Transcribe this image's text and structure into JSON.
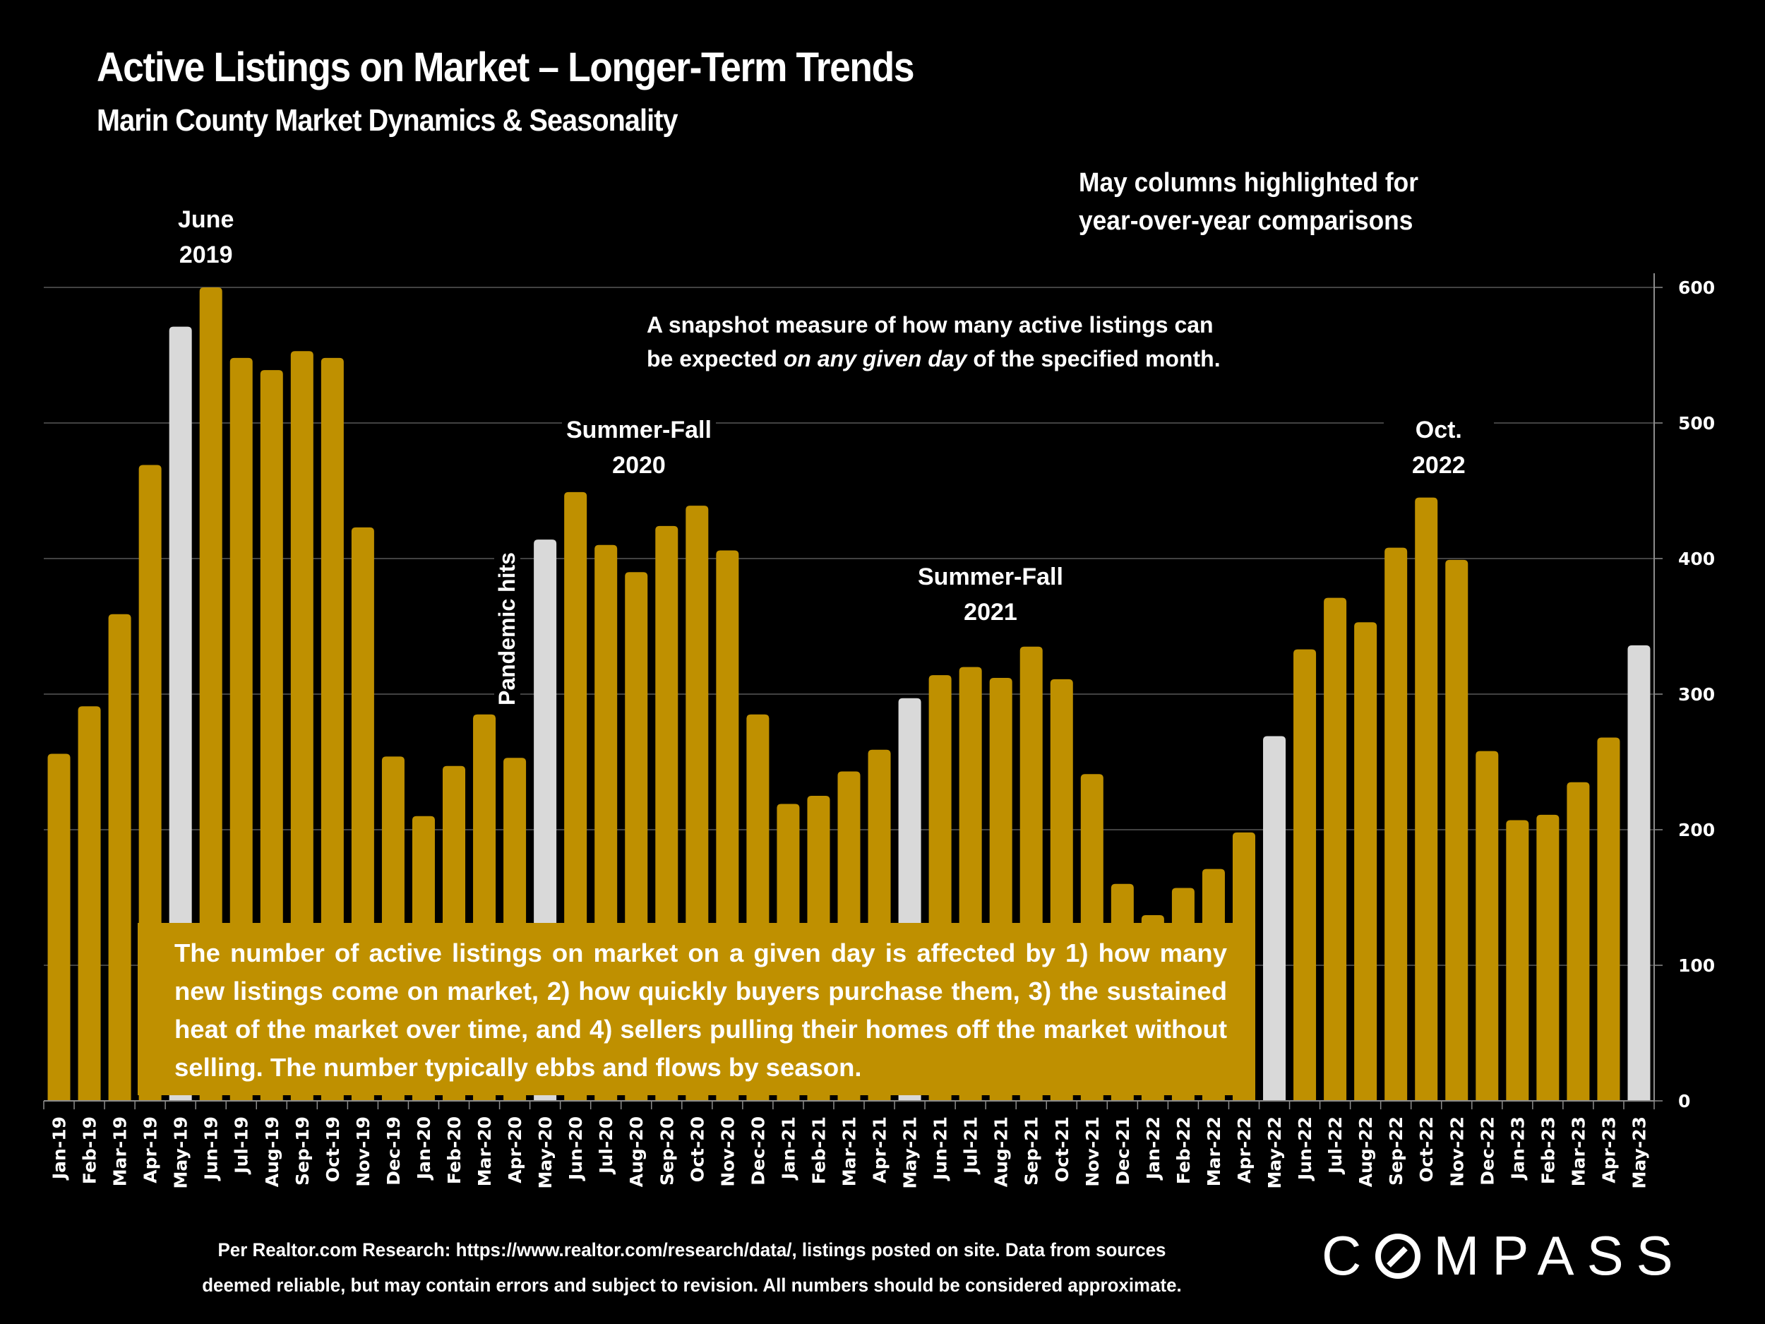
{
  "header": {
    "title": "Active Listings on Market – Longer-Term Trends",
    "subtitle": "Marin County Market Dynamics & Seasonality"
  },
  "notes": {
    "may_highlight_line1": "May columns highlighted for",
    "may_highlight_line2": "year-over-year comparisons",
    "snapshot_line1": "A snapshot measure of how many active listings can",
    "snapshot_line2_pre": "be expected ",
    "snapshot_line2_em": "on any given day",
    "snapshot_line2_post": " of the specified month."
  },
  "annotations": {
    "june2019_line1": "June",
    "june2019_line2": "2019",
    "summerfall2020_line1": "Summer-Fall",
    "summerfall2020_line2": "2020",
    "summerfall2021_line1": "Summer-Fall",
    "summerfall2021_line2": "2021",
    "oct2022_line1": "Oct.",
    "oct2022_line2": "2022",
    "pandemic": "Pandemic hits"
  },
  "textbox": "The number of active listings on market on a given day is affected by 1) how many new listings come on market, 2) how quickly buyers purchase them, 3) the sustained heat of the market over time, and 4) sellers pulling their homes off the market without selling. The number typically ebbs and flows by season.",
  "footer": {
    "line1": "Per Realtor.com Research:  https://www.realtor.com/research/data/, listings posted on site. Data from sources",
    "line2": "deemed reliable, but may contain errors and subject to revision. All numbers should be considered approximate."
  },
  "logo": {
    "pre": "C",
    "post": "MPASS"
  },
  "colors": {
    "bar": "#BF9000",
    "highlight": "#D9D9D9",
    "background": "#000000",
    "gridline": "#595959"
  },
  "chart_data": {
    "type": "bar",
    "title": "Active Listings on Market – Longer-Term Trends",
    "subtitle": "Marin County Market Dynamics & Seasonality",
    "xlabel": "",
    "ylabel": "",
    "ylim": [
      0,
      600
    ],
    "yticks": [
      0,
      100,
      200,
      300,
      400,
      500,
      600
    ],
    "y_axis_side": "right",
    "grid": true,
    "highlight_rule": "May columns highlighted",
    "categories": [
      "Jan-19",
      "Feb-19",
      "Mar-19",
      "Apr-19",
      "May-19",
      "Jun-19",
      "Jul-19",
      "Aug-19",
      "Sep-19",
      "Oct-19",
      "Nov-19",
      "Dec-19",
      "Jan-20",
      "Feb-20",
      "Mar-20",
      "Apr-20",
      "May-20",
      "Jun-20",
      "Jul-20",
      "Aug-20",
      "Sep-20",
      "Oct-20",
      "Nov-20",
      "Dec-20",
      "Jan-21",
      "Feb-21",
      "Mar-21",
      "Apr-21",
      "May-21",
      "Jun-21",
      "Jul-21",
      "Aug-21",
      "Sep-21",
      "Oct-21",
      "Nov-21",
      "Dec-21",
      "Jan-22",
      "Feb-22",
      "Mar-22",
      "Apr-22",
      "May-22",
      "Jun-22",
      "Jul-22",
      "Aug-22",
      "Sep-22",
      "Oct-22",
      "Nov-22",
      "Dec-22",
      "Jan-23",
      "Feb-23",
      "Mar-23",
      "Apr-23",
      "May-23"
    ],
    "values": [
      256,
      291,
      359,
      469,
      571,
      600,
      548,
      539,
      553,
      548,
      423,
      254,
      210,
      247,
      285,
      253,
      414,
      449,
      410,
      390,
      424,
      439,
      406,
      285,
      219,
      225,
      243,
      259,
      297,
      314,
      320,
      312,
      335,
      311,
      241,
      160,
      137,
      157,
      171,
      198,
      269,
      333,
      371,
      353,
      408,
      445,
      399,
      258,
      207,
      211,
      235,
      268,
      336
    ]
  }
}
